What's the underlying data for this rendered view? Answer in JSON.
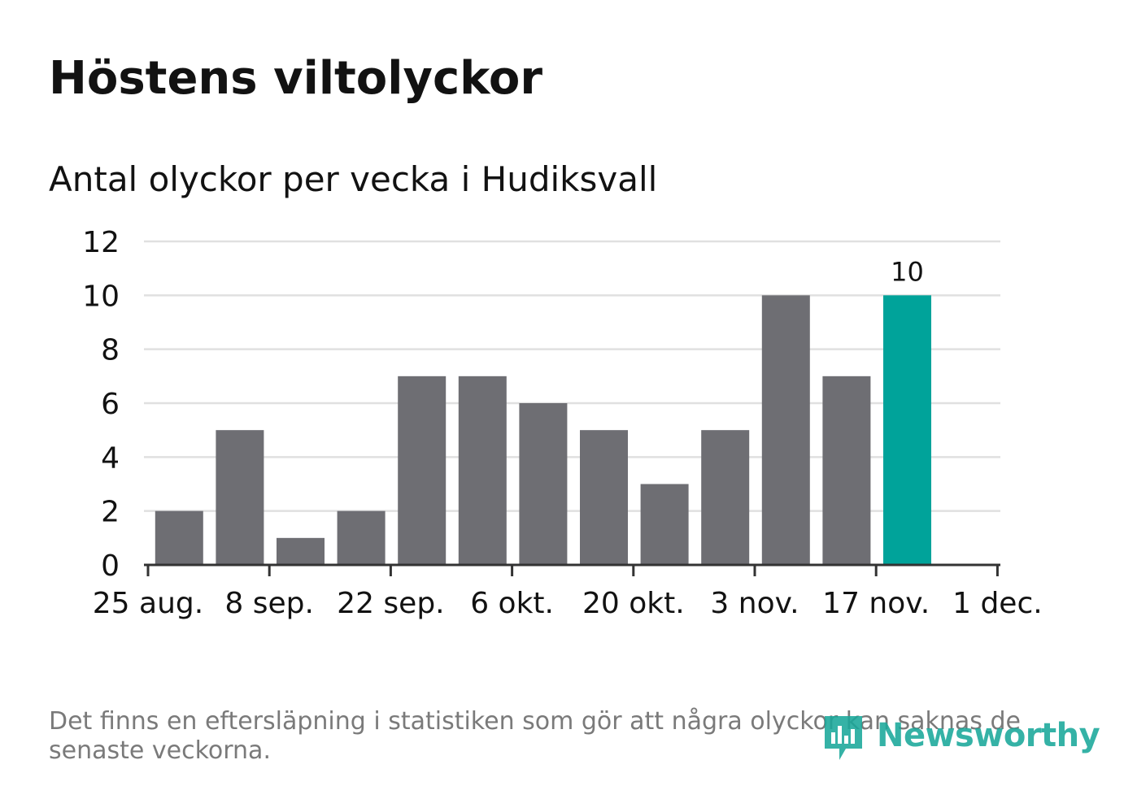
{
  "title": "Höstens viltolyckor",
  "subtitle": "Antal olyckor per vecka i Hudiksvall",
  "footnote": "Det finns en eftersläpning i statistiken som gör att några olyckor kan saknas de senaste veckorna.",
  "logo": {
    "text": "Newsworthy",
    "icon": "newsworthy-logo-icon",
    "color": "#1aa89a"
  },
  "colors": {
    "bar": "#6e6e73",
    "highlight_bar": "#00a39a",
    "grid": "#e0e0e0",
    "axis": "#333333",
    "text": "#121212",
    "footnote": "#7a7a7a"
  },
  "chart_data": {
    "type": "bar",
    "x_ticks": [
      "25 aug.",
      "8 sep.",
      "22 sep.",
      "6 okt.",
      "20 okt.",
      "3 nov.",
      "17 nov.",
      "1 dec."
    ],
    "y_ticks": [
      0,
      2,
      4,
      6,
      8,
      10,
      12
    ],
    "ylim": [
      0,
      12
    ],
    "grid": true,
    "values": [
      2,
      5,
      1,
      2,
      7,
      7,
      6,
      5,
      3,
      5,
      10,
      7,
      10
    ],
    "highlight_index": 12,
    "data_labels": [
      {
        "index": 12,
        "text": "10"
      }
    ]
  }
}
